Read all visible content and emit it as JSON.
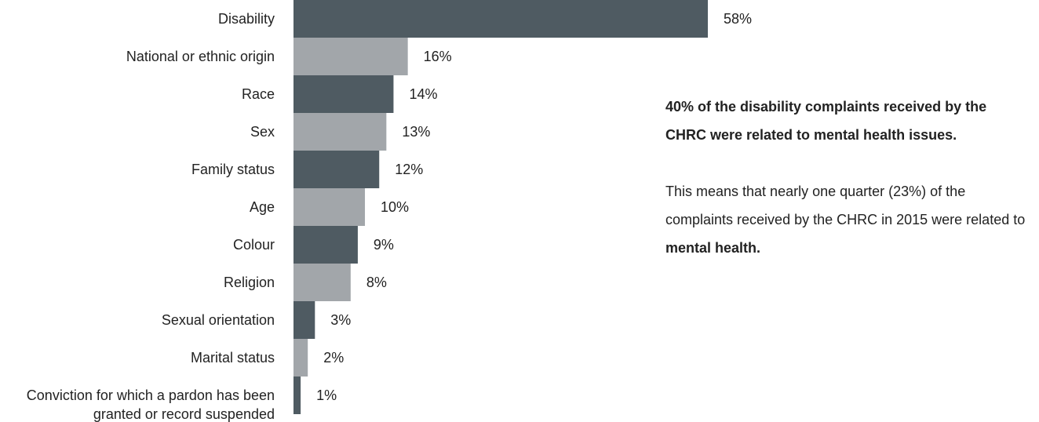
{
  "chart_data": {
    "type": "bar",
    "orientation": "horizontal",
    "categories": [
      "Disability",
      "National or ethnic origin",
      "Race",
      "Sex",
      "Family status",
      "Age",
      "Colour",
      "Religion",
      "Sexual orientation",
      "Marital status",
      [
        "Conviction for which a pardon has been",
        "granted or record suspended"
      ]
    ],
    "values": [
      58,
      16,
      14,
      13,
      12,
      10,
      9,
      8,
      3,
      2,
      1
    ],
    "value_labels": [
      "58%",
      "16%",
      "14%",
      "13%",
      "12%",
      "10%",
      "9%",
      "8%",
      "3%",
      "2%",
      "1%"
    ],
    "unit": "%",
    "xlim": [
      0,
      58
    ],
    "grid": false,
    "colors": [
      "#4f5b62",
      "#a2a6aa"
    ]
  },
  "note": {
    "paragraph1": "40% of the disability complaints received by the CHRC were related to mental health issues.",
    "paragraph2_prefix": "This means that nearly one quarter (23%) of the complaints received by the CHRC in 2015 were related to ",
    "paragraph2_bold": "mental health."
  }
}
